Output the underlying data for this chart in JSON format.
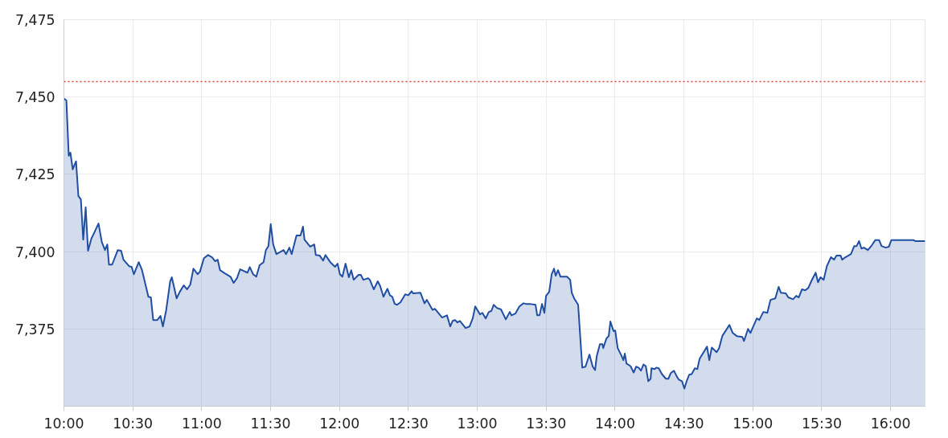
{
  "chart_data": {
    "type": "area",
    "x": [
      10.0,
      10.018,
      10.035,
      10.047,
      10.064,
      10.088,
      10.105,
      10.123,
      10.14,
      10.158,
      10.175,
      10.199,
      10.222,
      10.251,
      10.275,
      10.298,
      10.315,
      10.327,
      10.35,
      10.391,
      10.415,
      10.432,
      10.473,
      10.491,
      10.508,
      10.543,
      10.567,
      10.602,
      10.613,
      10.631,
      10.648,
      10.678,
      10.701,
      10.718,
      10.742,
      10.771,
      10.783,
      10.818,
      10.841,
      10.87,
      10.894,
      10.917,
      10.94,
      10.97,
      10.987,
      11.016,
      11.046,
      11.075,
      11.098,
      11.116,
      11.133,
      11.168,
      11.209,
      11.232,
      11.256,
      11.279,
      11.332,
      11.349,
      11.373,
      11.396,
      11.42,
      11.449,
      11.466,
      11.484,
      11.501,
      11.519,
      11.542,
      11.595,
      11.612,
      11.636,
      11.653,
      11.671,
      11.688,
      11.717,
      11.735,
      11.746,
      11.787,
      11.817,
      11.828,
      11.857,
      11.881,
      11.898,
      11.933,
      11.968,
      11.986,
      12.003,
      12.021,
      12.044,
      12.068,
      12.085,
      12.103,
      12.138,
      12.155,
      12.173,
      12.208,
      12.22,
      12.249,
      12.278,
      12.296,
      12.319,
      12.348,
      12.366,
      12.383,
      12.401,
      12.418,
      12.442,
      12.477,
      12.5,
      12.523,
      12.535,
      12.588,
      12.617,
      12.634,
      12.675,
      12.693,
      12.745,
      12.78,
      12.804,
      12.821,
      12.839,
      12.856,
      12.874,
      12.915,
      12.944,
      12.967,
      12.985,
      13.02,
      13.037,
      13.061,
      13.084,
      13.102,
      13.119,
      13.142,
      13.172,
      13.207,
      13.236,
      13.248,
      13.277,
      13.306,
      13.335,
      13.353,
      13.382,
      13.423,
      13.435,
      13.452,
      13.47,
      13.487,
      13.499,
      13.522,
      13.54,
      13.557,
      13.569,
      13.586,
      13.604,
      13.651,
      13.674,
      13.686,
      13.703,
      13.732,
      13.762,
      13.785,
      13.814,
      13.838,
      13.855,
      13.867,
      13.89,
      13.908,
      13.914,
      13.937,
      13.954,
      13.966,
      13.989,
      14.001,
      14.019,
      14.048,
      14.06,
      14.071,
      14.083,
      14.112,
      14.135,
      14.153,
      14.17,
      14.188,
      14.206,
      14.223,
      14.241,
      14.258,
      14.264,
      14.287,
      14.299,
      14.317,
      14.34,
      14.369,
      14.387,
      14.404,
      14.427,
      14.445,
      14.463,
      14.486,
      14.503,
      14.521,
      14.538,
      14.556,
      14.579,
      14.597,
      14.614,
      14.643,
      14.667,
      14.684,
      14.702,
      14.737,
      14.755,
      14.778,
      14.83,
      14.854,
      14.883,
      14.924,
      14.936,
      14.965,
      14.982,
      15.029,
      15.047,
      15.076,
      15.105,
      15.128,
      15.163,
      15.187,
      15.204,
      15.239,
      15.257,
      15.292,
      15.315,
      15.333,
      15.356,
      15.38,
      15.403,
      15.426,
      15.456,
      15.473,
      15.491,
      15.514,
      15.537,
      15.567,
      15.59,
      15.607,
      15.637,
      15.648,
      15.672,
      15.712,
      15.736,
      15.753,
      15.771,
      15.788,
      15.806,
      15.835,
      15.864,
      15.888,
      15.917,
      15.934,
      15.964,
      15.987,
      16.005,
      16.168,
      16.18,
      16.25
    ],
    "series": [
      {
        "color": "#1f4ea3",
        "values": [
          7449.5,
          7448.9,
          7431.0,
          7432.0,
          7426.6,
          7429.2,
          7418.0,
          7416.9,
          7403.9,
          7414.3,
          7400.3,
          7404.2,
          7406.3,
          7409.1,
          7403.1,
          7400.5,
          7402.3,
          7395.8,
          7395.8,
          7400.5,
          7400.3,
          7397.4,
          7395.3,
          7395.1,
          7392.7,
          7396.6,
          7394.0,
          7387.5,
          7385.4,
          7385.2,
          7377.9,
          7377.9,
          7379.2,
          7375.8,
          7381.0,
          7390.4,
          7391.7,
          7384.9,
          7387.0,
          7389.1,
          7387.8,
          7389.3,
          7394.5,
          7392.7,
          7393.5,
          7397.9,
          7398.9,
          7398.2,
          7396.9,
          7397.4,
          7394.0,
          7393.0,
          7391.9,
          7389.9,
          7391.4,
          7394.3,
          7393.2,
          7395.0,
          7392.7,
          7391.9,
          7395.6,
          7396.6,
          7400.5,
          7401.8,
          7408.9,
          7402.3,
          7399.2,
          7400.5,
          7399.2,
          7401.3,
          7399.2,
          7402.3,
          7405.2,
          7405.2,
          7408.1,
          7403.9,
          7401.6,
          7402.3,
          7398.9,
          7398.7,
          7397.1,
          7398.9,
          7396.6,
          7395.1,
          7396.1,
          7392.7,
          7391.9,
          7396.1,
          7391.7,
          7394.0,
          7390.9,
          7392.5,
          7392.5,
          7390.9,
          7391.4,
          7390.9,
          7387.8,
          7390.4,
          7388.8,
          7385.4,
          7388.0,
          7385.9,
          7385.4,
          7383.1,
          7382.8,
          7383.6,
          7386.2,
          7385.9,
          7387.2,
          7386.5,
          7386.7,
          7383.3,
          7384.4,
          7381.2,
          7381.5,
          7378.7,
          7379.4,
          7375.8,
          7377.6,
          7377.9,
          7377.1,
          7377.6,
          7375.3,
          7375.8,
          7378.4,
          7382.3,
          7379.7,
          7380.2,
          7378.4,
          7380.5,
          7380.8,
          7382.8,
          7381.8,
          7381.3,
          7378.1,
          7380.5,
          7379.4,
          7380.0,
          7382.3,
          7383.3,
          7383.1,
          7383.1,
          7382.8,
          7379.4,
          7379.4,
          7383.1,
          7380.2,
          7385.7,
          7387.0,
          7392.7,
          7394.5,
          7392.2,
          7394.0,
          7391.9,
          7391.9,
          7390.9,
          7386.7,
          7384.9,
          7382.8,
          7362.5,
          7362.8,
          7366.7,
          7362.8,
          7361.7,
          7366.2,
          7370.1,
          7370.1,
          7368.8,
          7371.9,
          7372.7,
          7377.4,
          7374.3,
          7374.5,
          7368.8,
          7366.2,
          7364.9,
          7367.0,
          7363.8,
          7363.0,
          7360.9,
          7362.8,
          7362.5,
          7361.5,
          7363.5,
          7363.0,
          7358.1,
          7358.9,
          7362.3,
          7362.0,
          7362.5,
          7362.3,
          7360.4,
          7358.9,
          7358.9,
          7360.7,
          7361.5,
          7359.9,
          7358.6,
          7358.1,
          7355.7,
          7358.3,
          7360.2,
          7360.4,
          7362.3,
          7362.0,
          7365.4,
          7367.5,
          7369.3,
          7364.9,
          7369.0,
          7367.5,
          7368.8,
          7372.7,
          7376.3,
          7373.7,
          7372.7,
          7372.4,
          7371.1,
          7375.0,
          7373.7,
          7378.4,
          7377.9,
          7380.5,
          7380.2,
          7384.4,
          7384.9,
          7388.6,
          7386.7,
          7386.5,
          7385.2,
          7384.6,
          7385.7,
          7385.2,
          7387.8,
          7387.5,
          7388.3,
          7390.6,
          7393.2,
          7390.1,
          7391.7,
          7390.9,
          7395.3,
          7398.2,
          7397.4,
          7398.7,
          7398.7,
          7397.4,
          7398.2,
          7399.2,
          7401.8,
          7401.8,
          7403.4,
          7401.0,
          7401.3,
          7400.5,
          7402.1,
          7403.7,
          7403.7,
          7401.8,
          7401.3,
          7401.6,
          7403.7,
          7403.7,
          7403.4,
          7403.4
        ]
      }
    ],
    "xlim": [
      10.0,
      16.25
    ],
    "xticks": [
      {
        "value": 10,
        "label": "10:00"
      },
      {
        "value": 10.5,
        "label": "10:30"
      },
      {
        "value": 11,
        "label": "11:00"
      },
      {
        "value": 11.5,
        "label": "11:30"
      },
      {
        "value": 12,
        "label": "12:00"
      },
      {
        "value": 12.5,
        "label": "12:30"
      },
      {
        "value": 13,
        "label": "13:00"
      },
      {
        "value": 13.5,
        "label": "13:30"
      },
      {
        "value": 14,
        "label": "14:00"
      },
      {
        "value": 14.5,
        "label": "14:30"
      },
      {
        "value": 15,
        "label": "15:00"
      },
      {
        "value": 15.5,
        "label": "15:30"
      },
      {
        "value": 16,
        "label": "16:00"
      }
    ],
    "ylim": [
      7350,
      7475
    ],
    "yticks": [
      {
        "value": 7375,
        "label": "7,375"
      },
      {
        "value": 7400,
        "label": "7,400"
      },
      {
        "value": 7425,
        "label": "7,425"
      },
      {
        "value": 7450,
        "label": "7,450"
      },
      {
        "value": 7475,
        "label": "7,475"
      }
    ],
    "ref_lines": [
      {
        "axis": "y",
        "value": 7455,
        "color": "#e53935",
        "line_style": "dotted"
      }
    ],
    "grid": true
  }
}
